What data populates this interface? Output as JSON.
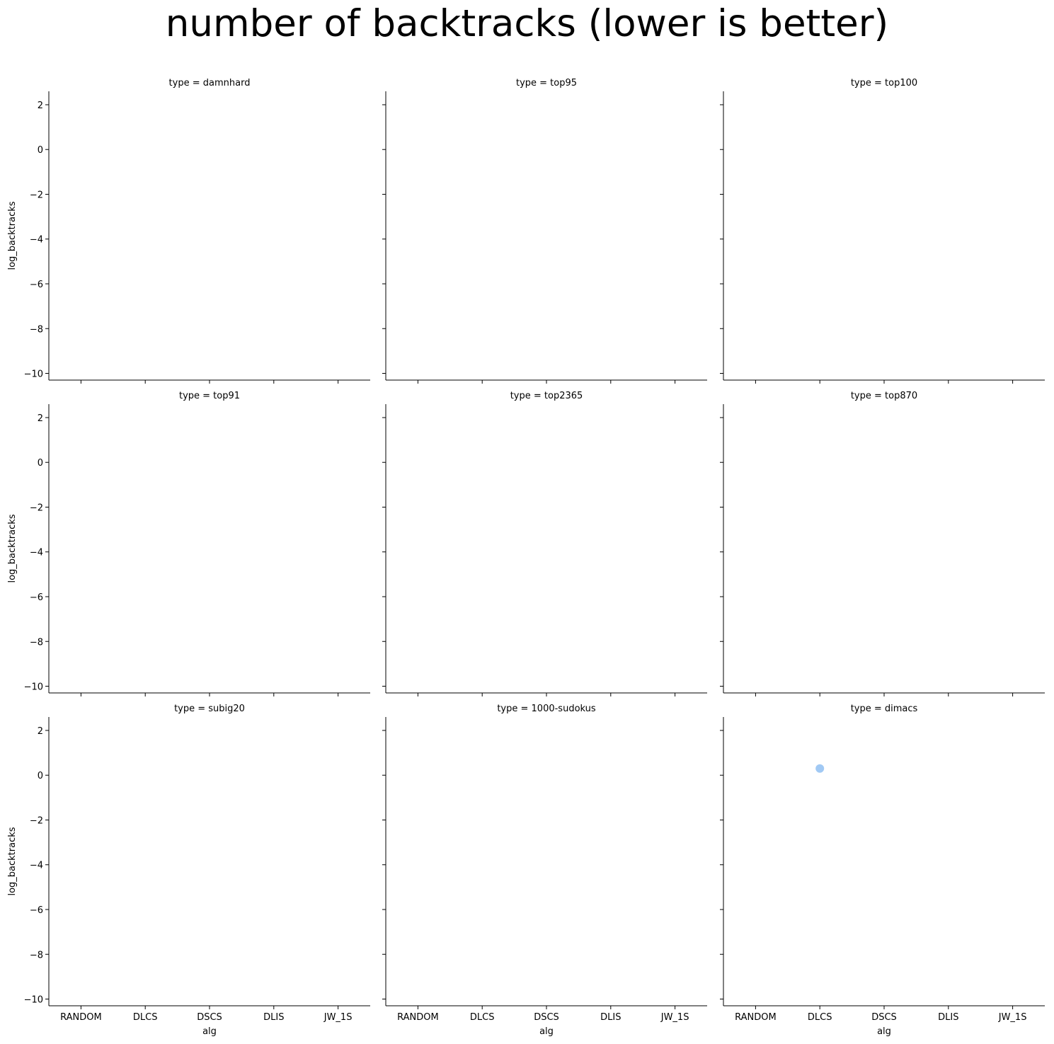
{
  "chart_data": {
    "type": "scatter",
    "title": "number of backtracks (lower is better)",
    "xlabel": "alg",
    "ylabel": "log_backtracks",
    "categories": [
      "RANDOM",
      "DLCS",
      "DSCS",
      "DLIS",
      "JW_1S"
    ],
    "ylim": [
      -10.3,
      2.6
    ],
    "yticks": [
      2,
      0,
      -2,
      -4,
      -6,
      -8,
      -10
    ],
    "ytick_labels": [
      "2",
      "0",
      "−2",
      "−4",
      "−6",
      "−8",
      "−10"
    ],
    "grid": false,
    "marker_color": "#a1c9f4",
    "panels": [
      {
        "title": "type = damnhard",
        "points": []
      },
      {
        "title": "type = top95",
        "points": []
      },
      {
        "title": "type = top100",
        "points": []
      },
      {
        "title": "type = top91",
        "points": []
      },
      {
        "title": "type = top2365",
        "points": []
      },
      {
        "title": "type = top870",
        "points": []
      },
      {
        "title": "type = subig20",
        "points": []
      },
      {
        "title": "type = 1000-sudokus",
        "points": []
      },
      {
        "title": "type = dimacs",
        "points": [
          {
            "x": "DLCS",
            "y": 0.3
          }
        ]
      }
    ]
  }
}
